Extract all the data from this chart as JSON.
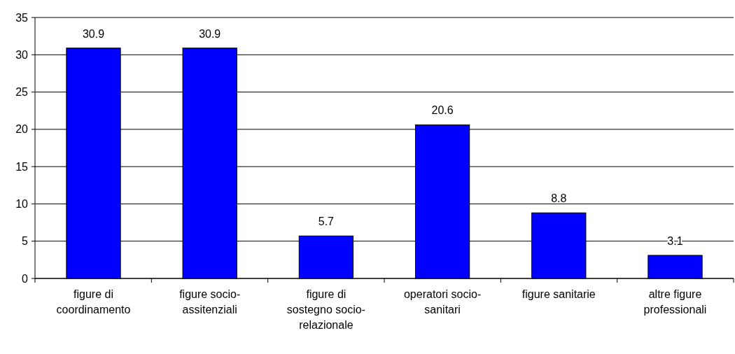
{
  "chart_data": {
    "type": "bar",
    "categories": [
      "figure di coordinamento",
      "figure socio-assitenziali",
      "figure di sostegno socio-relazionale",
      "operatori socio-sanitari",
      "figure sanitarie",
      "altre figure professionali"
    ],
    "values": [
      30.9,
      30.9,
      5.7,
      20.6,
      8.8,
      3.1
    ],
    "color": "#0000ff",
    "ylim": [
      0,
      35
    ],
    "yticks": [
      0,
      5,
      10,
      15,
      20,
      25,
      30,
      35
    ],
    "grid": "y",
    "data_labels": true
  }
}
